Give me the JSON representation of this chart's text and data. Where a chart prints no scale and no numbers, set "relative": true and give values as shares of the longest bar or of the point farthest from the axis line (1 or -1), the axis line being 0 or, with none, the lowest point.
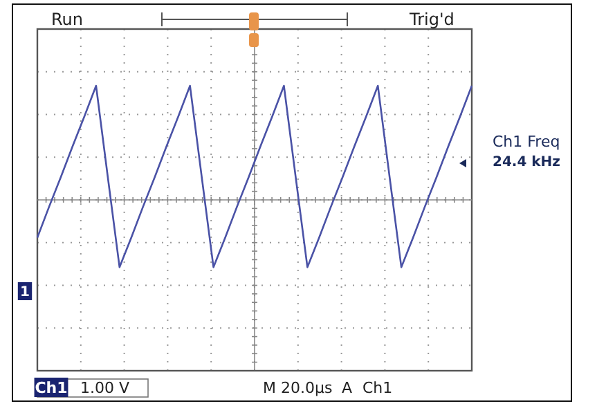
{
  "chart_data": {
    "type": "line",
    "relative": true,
    "grid": true,
    "categories": [
      null,
      null,
      null,
      null,
      null,
      null,
      null,
      null,
      null,
      null,
      null,
      null,
      null,
      null,
      null,
      null,
      null,
      null,
      null,
      null,
      null,
      null,
      null,
      null,
      null,
      null,
      null,
      null,
      null,
      null,
      null,
      null,
      null,
      null,
      null,
      null,
      null,
      null
    ],
    "series": [
      {
        "color": "#4a52a6",
        "values": [
          -0.33,
          -0.06,
          0.2,
          0.47,
          0.73,
          1,
          0.2,
          -0.59,
          -0.33,
          -0.06,
          0.2,
          0.47,
          0.73,
          1,
          0.2,
          -0.59,
          -0.33,
          -0.06,
          0.2,
          0.47,
          0.73,
          1,
          0.2,
          -0.59,
          -0.33,
          -0.06,
          0.2,
          0.47,
          0.73,
          1,
          0.2,
          -0.59,
          -0.33,
          -0.06,
          0.2,
          0.47,
          0.73,
          1
        ]
      }
    ],
    "annotations": [
      "Run",
      "Trig'd",
      "Ch1 Freq",
      "24.4 kHz",
      "1",
      "Ch1",
      "1.00 V",
      "M 20.0µs",
      "A",
      "Ch1"
    ]
  }
}
